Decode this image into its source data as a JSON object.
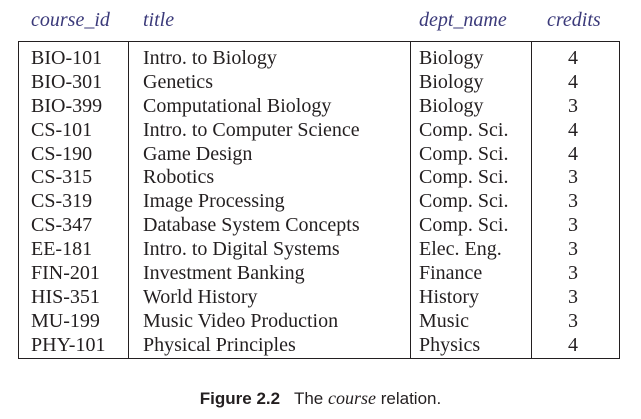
{
  "table": {
    "headers": [
      "course_id",
      "title",
      "dept_name",
      "credits"
    ],
    "rows": [
      [
        "BIO-101",
        "Intro. to Biology",
        "Biology",
        "4"
      ],
      [
        "BIO-301",
        "Genetics",
        "Biology",
        "4"
      ],
      [
        "BIO-399",
        "Computational Biology",
        "Biology",
        "3"
      ],
      [
        "CS-101",
        "Intro. to Computer Science",
        "Comp. Sci.",
        "4"
      ],
      [
        "CS-190",
        "Game Design",
        "Comp. Sci.",
        "4"
      ],
      [
        "CS-315",
        "Robotics",
        "Comp. Sci.",
        "3"
      ],
      [
        "CS-319",
        "Image Processing",
        "Comp. Sci.",
        "3"
      ],
      [
        "CS-347",
        "Database System Concepts",
        "Comp. Sci.",
        "3"
      ],
      [
        "EE-181",
        "Intro. to Digital Systems",
        "Elec. Eng.",
        "3"
      ],
      [
        "FIN-201",
        "Investment Banking",
        "Finance",
        "3"
      ],
      [
        "HIS-351",
        "World History",
        "History",
        "3"
      ],
      [
        "MU-199",
        "Music Video Production",
        "Music",
        "3"
      ],
      [
        "PHY-101",
        "Physical Principles",
        "Physics",
        "4"
      ]
    ]
  },
  "caption": {
    "label": "Figure 2.2",
    "text_before": "The",
    "italic": "course",
    "text_after": "relation."
  },
  "colors": {
    "header_text": "#3b3a7a",
    "body_text": "#231f20"
  },
  "chart_data": {
    "type": "table",
    "columns": [
      "course_id",
      "title",
      "dept_name",
      "credits"
    ],
    "rows": [
      [
        "BIO-101",
        "Intro. to Biology",
        "Biology",
        4
      ],
      [
        "BIO-301",
        "Genetics",
        "Biology",
        4
      ],
      [
        "BIO-399",
        "Computational Biology",
        "Biology",
        3
      ],
      [
        "CS-101",
        "Intro. to Computer Science",
        "Comp. Sci.",
        4
      ],
      [
        "CS-190",
        "Game Design",
        "Comp. Sci.",
        4
      ],
      [
        "CS-315",
        "Robotics",
        "Comp. Sci.",
        3
      ],
      [
        "CS-319",
        "Image Processing",
        "Comp. Sci.",
        3
      ],
      [
        "CS-347",
        "Database System Concepts",
        "Comp. Sci.",
        3
      ],
      [
        "EE-181",
        "Intro. to Digital Systems",
        "Elec. Eng.",
        3
      ],
      [
        "FIN-201",
        "Investment Banking",
        "Finance",
        3
      ],
      [
        "HIS-351",
        "World History",
        "History",
        3
      ],
      [
        "MU-199",
        "Music Video Production",
        "Music",
        3
      ],
      [
        "PHY-101",
        "Physical Principles",
        "Physics",
        4
      ]
    ],
    "title": "Figure 2.2 The course relation."
  }
}
